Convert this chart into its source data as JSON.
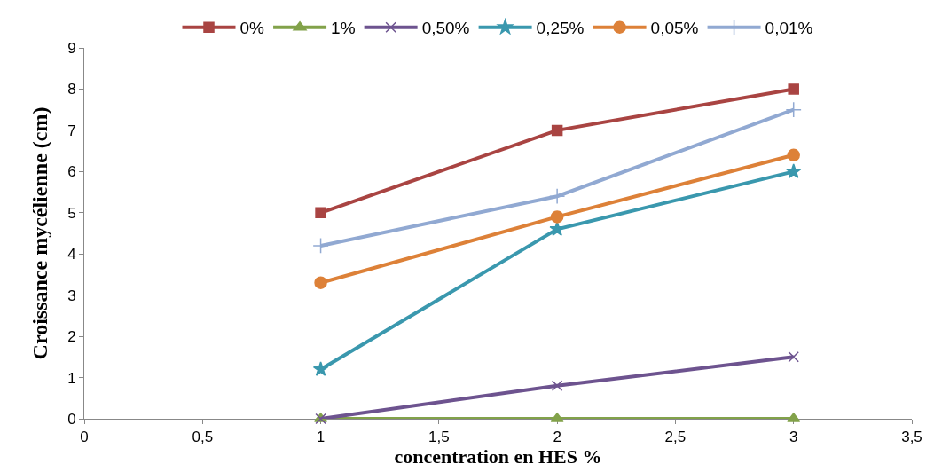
{
  "chart_data": {
    "type": "line",
    "xlabel": "concentration en HES %",
    "ylabel": "Croissance mycélienne (cm)",
    "x": [
      1,
      2,
      3
    ],
    "series": [
      {
        "name": "0%",
        "color": "#a94442",
        "marker": "square",
        "values": [
          5,
          7,
          8
        ]
      },
      {
        "name": "1%",
        "color": "#82a24a",
        "marker": "triangle",
        "values": [
          0,
          0,
          0
        ]
      },
      {
        "name": "0,50%",
        "color": "#6d538f",
        "marker": "cross",
        "values": [
          0,
          0.8,
          1.5
        ]
      },
      {
        "name": "0,25%",
        "color": "#3a98ae",
        "marker": "star",
        "values": [
          1.2,
          4.6,
          6
        ]
      },
      {
        "name": "0,05%",
        "color": "#dd8138",
        "marker": "circle",
        "values": [
          3.3,
          4.9,
          6.4
        ]
      },
      {
        "name": "0,01%",
        "color": "#91a9d2",
        "marker": "plus",
        "values": [
          4.2,
          5.4,
          7.5
        ]
      }
    ],
    "xlim": [
      0,
      3.5
    ],
    "xticks": [
      0,
      {
        "value": 0.5,
        "label": "0,5"
      },
      1,
      {
        "value": 1.5,
        "label": "1,5"
      },
      2,
      {
        "value": 2.5,
        "label": "2,5"
      },
      3,
      {
        "value": 3.5,
        "label": "3,5"
      }
    ],
    "ylim": [
      0,
      9
    ],
    "yticks": [
      0,
      1,
      2,
      3,
      4,
      5,
      6,
      7,
      8,
      9
    ],
    "legend": "top",
    "line_style": "solid"
  }
}
